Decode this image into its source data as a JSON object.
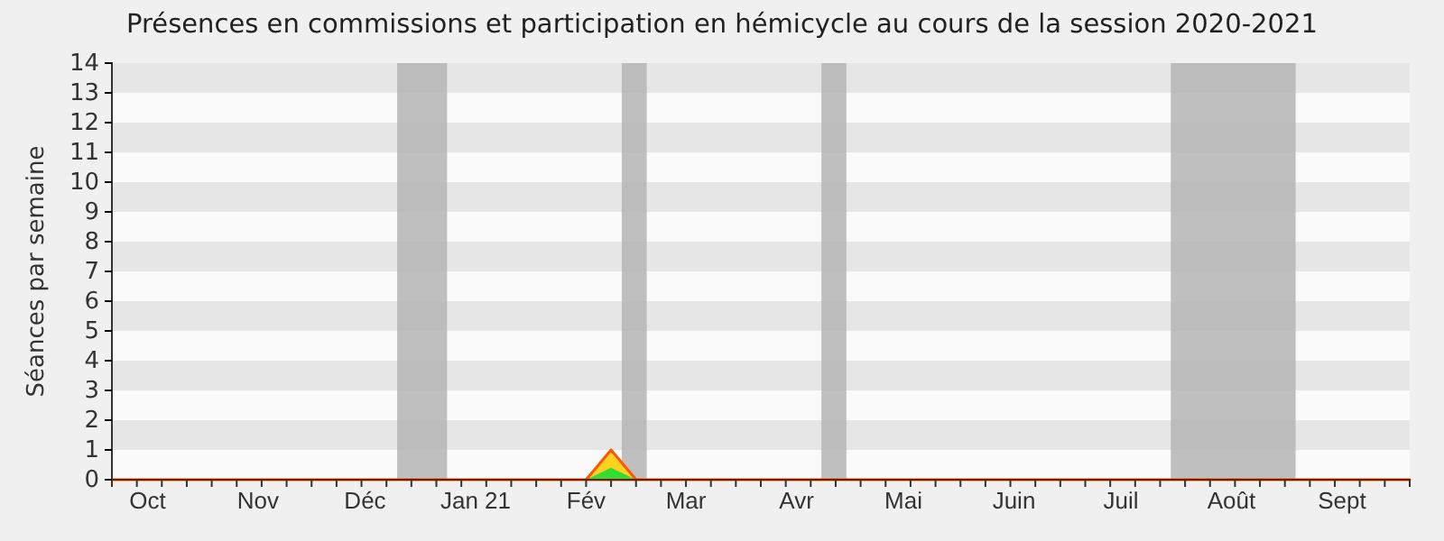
{
  "chart_data": {
    "type": "area",
    "title": "Présences en commissions et participation en hémicycle au cours de la session 2020-2021",
    "ylabel": "Séances par semaine",
    "x": [
      "2020-10-05",
      "2020-10-12",
      "2020-10-19",
      "2020-10-26",
      "2020-11-02",
      "2020-11-09",
      "2020-11-16",
      "2020-11-23",
      "2020-11-30",
      "2020-12-07",
      "2020-12-14",
      "2020-12-21",
      "2020-12-28",
      "2021-01-04",
      "2021-01-11",
      "2021-01-18",
      "2021-01-25",
      "2021-02-01",
      "2021-02-08",
      "2021-02-15",
      "2021-02-22",
      "2021-03-01",
      "2021-03-08",
      "2021-03-15",
      "2021-03-22",
      "2021-03-29",
      "2021-04-05",
      "2021-04-12",
      "2021-04-19",
      "2021-04-26",
      "2021-05-03",
      "2021-05-10",
      "2021-05-17",
      "2021-05-24",
      "2021-05-31",
      "2021-06-07",
      "2021-06-14",
      "2021-06-21",
      "2021-06-28",
      "2021-07-05",
      "2021-07-12",
      "2021-07-19",
      "2021-07-26",
      "2021-08-02",
      "2021-08-09",
      "2021-08-16",
      "2021-08-23",
      "2021-08-30",
      "2021-09-06",
      "2021-09-13",
      "2021-09-20",
      "2021-09-27",
      "2021-10-04"
    ],
    "series": [
      {
        "color": "#ffd21f",
        "values": [
          0,
          0,
          0,
          0,
          0,
          0,
          0,
          0,
          0,
          0,
          0,
          0,
          0,
          0,
          0,
          0,
          0,
          0,
          0,
          0,
          1,
          0,
          0,
          0,
          0,
          0,
          0,
          0,
          0,
          0,
          0,
          0,
          0,
          0,
          0,
          0,
          0,
          0,
          0,
          0,
          0,
          0,
          0,
          0,
          0,
          0,
          0,
          0,
          0,
          0,
          0,
          0,
          0
        ]
      },
      {
        "color": "#33dd33",
        "values": [
          0,
          0,
          0,
          0,
          0,
          0,
          0,
          0,
          0,
          0,
          0,
          0,
          0,
          0,
          0,
          0,
          0,
          0,
          0,
          0,
          0.4,
          0,
          0,
          0,
          0,
          0,
          0,
          0,
          0,
          0,
          0,
          0,
          0,
          0,
          0,
          0,
          0,
          0,
          0,
          0,
          0,
          0,
          0,
          0,
          0,
          0,
          0,
          0,
          0,
          0,
          0,
          0,
          0
        ]
      }
    ],
    "xlim": [
      "2020-10-05",
      "2021-10-04"
    ],
    "xticks": [
      {
        "value": "2020-10-15",
        "label": "Oct"
      },
      {
        "value": "2020-11-15",
        "label": "Nov"
      },
      {
        "value": "2020-12-15",
        "label": "Déc"
      },
      {
        "value": "2021-01-15",
        "label": "Jan 21"
      },
      {
        "value": "2021-02-15",
        "label": "Fév"
      },
      {
        "value": "2021-03-15",
        "label": "Mar"
      },
      {
        "value": "2021-04-15",
        "label": "Avr"
      },
      {
        "value": "2021-05-15",
        "label": "Mai"
      },
      {
        "value": "2021-06-15",
        "label": "Juin"
      },
      {
        "value": "2021-07-15",
        "label": "Juil"
      },
      {
        "value": "2021-08-15",
        "label": "Août"
      },
      {
        "value": "2021-09-15",
        "label": "Sept"
      }
    ],
    "ylim": [
      0,
      14
    ],
    "yticks": [
      0,
      1,
      2,
      3,
      4,
      5,
      6,
      7,
      8,
      9,
      10,
      11,
      12,
      13,
      14
    ],
    "bands": [
      {
        "axis": "y",
        "from": 1,
        "to": 2,
        "color": "#e6e6e6"
      },
      {
        "axis": "y",
        "from": 3,
        "to": 4,
        "color": "#e6e6e6"
      },
      {
        "axis": "y",
        "from": 5,
        "to": 6,
        "color": "#e6e6e6"
      },
      {
        "axis": "y",
        "from": 7,
        "to": 8,
        "color": "#e6e6e6"
      },
      {
        "axis": "y",
        "from": 9,
        "to": 10,
        "color": "#e6e6e6"
      },
      {
        "axis": "y",
        "from": 11,
        "to": 12,
        "color": "#e6e6e6"
      },
      {
        "axis": "y",
        "from": 13,
        "to": 14,
        "color": "#e6e6e6"
      },
      {
        "axis": "x",
        "from": "2020-12-24",
        "to": "2021-01-07",
        "color": "#b4b4b4"
      },
      {
        "axis": "x",
        "from": "2021-02-25",
        "to": "2021-03-04",
        "color": "#b4b4b4"
      },
      {
        "axis": "x",
        "from": "2021-04-22",
        "to": "2021-04-29",
        "color": "#b4b4b4"
      },
      {
        "axis": "x",
        "from": "2021-07-29",
        "to": "2021-09-02",
        "color": "#b4b4b4"
      }
    ]
  }
}
